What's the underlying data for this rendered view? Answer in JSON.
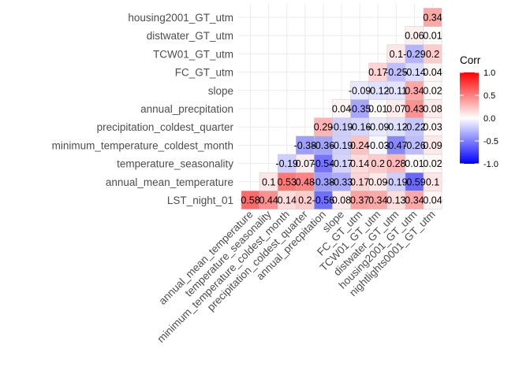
{
  "chart_data": {
    "type": "heatmap",
    "variables": [
      "LST_night_01",
      "annual_mean_temperature",
      "temperature_seasonality",
      "minimum_temperature_coldest_month",
      "precipitation_coldest_quarter",
      "annual_precpitation",
      "slope",
      "FC_GT_utm",
      "TCW01_GT_utm",
      "distwater_GT_utm",
      "housing2001_GT_utm",
      "nightlights0001_GT_utm"
    ],
    "y_labels": [
      "LST_night_01",
      "annual_mean_temperature",
      "temperature_seasonality",
      "minimum_temperature_coldest_month",
      "precipitation_coldest_quarter",
      "annual_precpitation",
      "slope",
      "FC_GT_utm",
      "TCW01_GT_utm",
      "distwater_GT_utm",
      "housing2001_GT_utm"
    ],
    "x_labels": [
      "annual_mean_temperature",
      "temperature_seasonality",
      "minimum_temperature_coldest_month",
      "precipitation_coldest_quarter",
      "annual_precpitation",
      "slope",
      "FC_GT_utm",
      "TCW01_GT_utm",
      "distwater_GT_utm",
      "housing2001_GT_utm",
      "nightlights0001_GT_utm"
    ],
    "rows": [
      {
        "y": "LST_night_01",
        "values": [
          0.58,
          0.44,
          0.14,
          0.2,
          -0.56,
          0.08,
          0.37,
          0.34,
          0.13,
          0.34,
          0.04
        ]
      },
      {
        "y": "annual_mean_temperature",
        "values": [
          0.1,
          0.53,
          0.48,
          -0.38,
          -0.33,
          0.17,
          0.09,
          -0.19,
          -0.59,
          0.1
        ]
      },
      {
        "y": "temperature_seasonality",
        "values": [
          -0.19,
          0.07,
          -0.54,
          -0.17,
          0.14,
          0.2,
          0.28,
          0.01,
          0.02
        ]
      },
      {
        "y": "minimum_temperature_coldest_month",
        "values": [
          -0.38,
          -0.36,
          -0.19,
          0.24,
          -0.03,
          -0.47,
          -0.26,
          0.09
        ]
      },
      {
        "y": "precipitation_coldest_quarter",
        "values": [
          0.29,
          -0.19,
          -0.16,
          -0.09,
          -0.12,
          -0.22,
          0.03
        ]
      },
      {
        "y": "annual_precpitation",
        "values": [
          0.04,
          -0.35,
          0.01,
          0.07,
          0.43,
          0.08
        ]
      },
      {
        "y": "slope",
        "values": [
          -0.09,
          -0.12,
          -0.11,
          0.34,
          0.02
        ]
      },
      {
        "y": "FC_GT_utm",
        "values": [
          0.17,
          -0.25,
          -0.14,
          0.04
        ]
      },
      {
        "y": "TCW01_GT_utm",
        "values": [
          0.1,
          -0.29,
          0.2
        ]
      },
      {
        "y": "distwater_GT_utm",
        "values": [
          0.06,
          0.01
        ]
      },
      {
        "y": "housing2001_GT_utm",
        "values": [
          0.34
        ]
      }
    ],
    "color_scale": {
      "low": "#0000ff",
      "mid": "#ffffff",
      "high": "#ff0000",
      "limits": [
        -1,
        1
      ]
    },
    "legend": {
      "title": "Corr",
      "ticks": [
        "1.0",
        "0.5",
        "0.0",
        "-0.5",
        "-1.0"
      ],
      "position": "right"
    },
    "grid": true
  }
}
